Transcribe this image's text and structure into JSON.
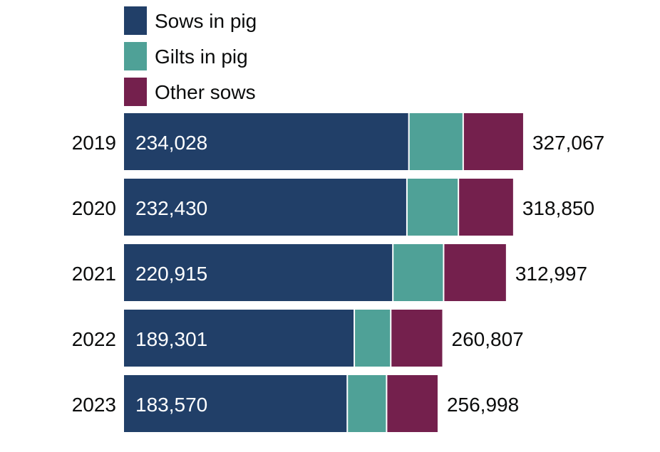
{
  "chart_data": {
    "type": "bar",
    "orientation": "horizontal",
    "stacked": true,
    "title": "",
    "xlabel": "",
    "ylabel": "",
    "categories": [
      "2019",
      "2020",
      "2021",
      "2022",
      "2023"
    ],
    "series": [
      {
        "name": "Sows in pig",
        "color": "#213f68",
        "values": [
          234028,
          232430,
          220915,
          189301,
          183570
        ]
      },
      {
        "name": "Gilts in pig",
        "color": "#4fa197",
        "values": [
          44500,
          42200,
          41600,
          29900,
          32200
        ]
      },
      {
        "name": "Other sows",
        "color": "#74204d",
        "values": [
          48539,
          44220,
          50482,
          41606,
          41228
        ]
      }
    ],
    "sows_labels": [
      "234,028",
      "232,430",
      "220,915",
      "189,301",
      "183,570"
    ],
    "totals": [
      327067,
      318850,
      312997,
      260807,
      256998
    ],
    "total_labels": [
      "327,067",
      "318,850",
      "312,997",
      "260,807",
      "256,998"
    ],
    "legend_position": "top-left",
    "grid": false
  }
}
